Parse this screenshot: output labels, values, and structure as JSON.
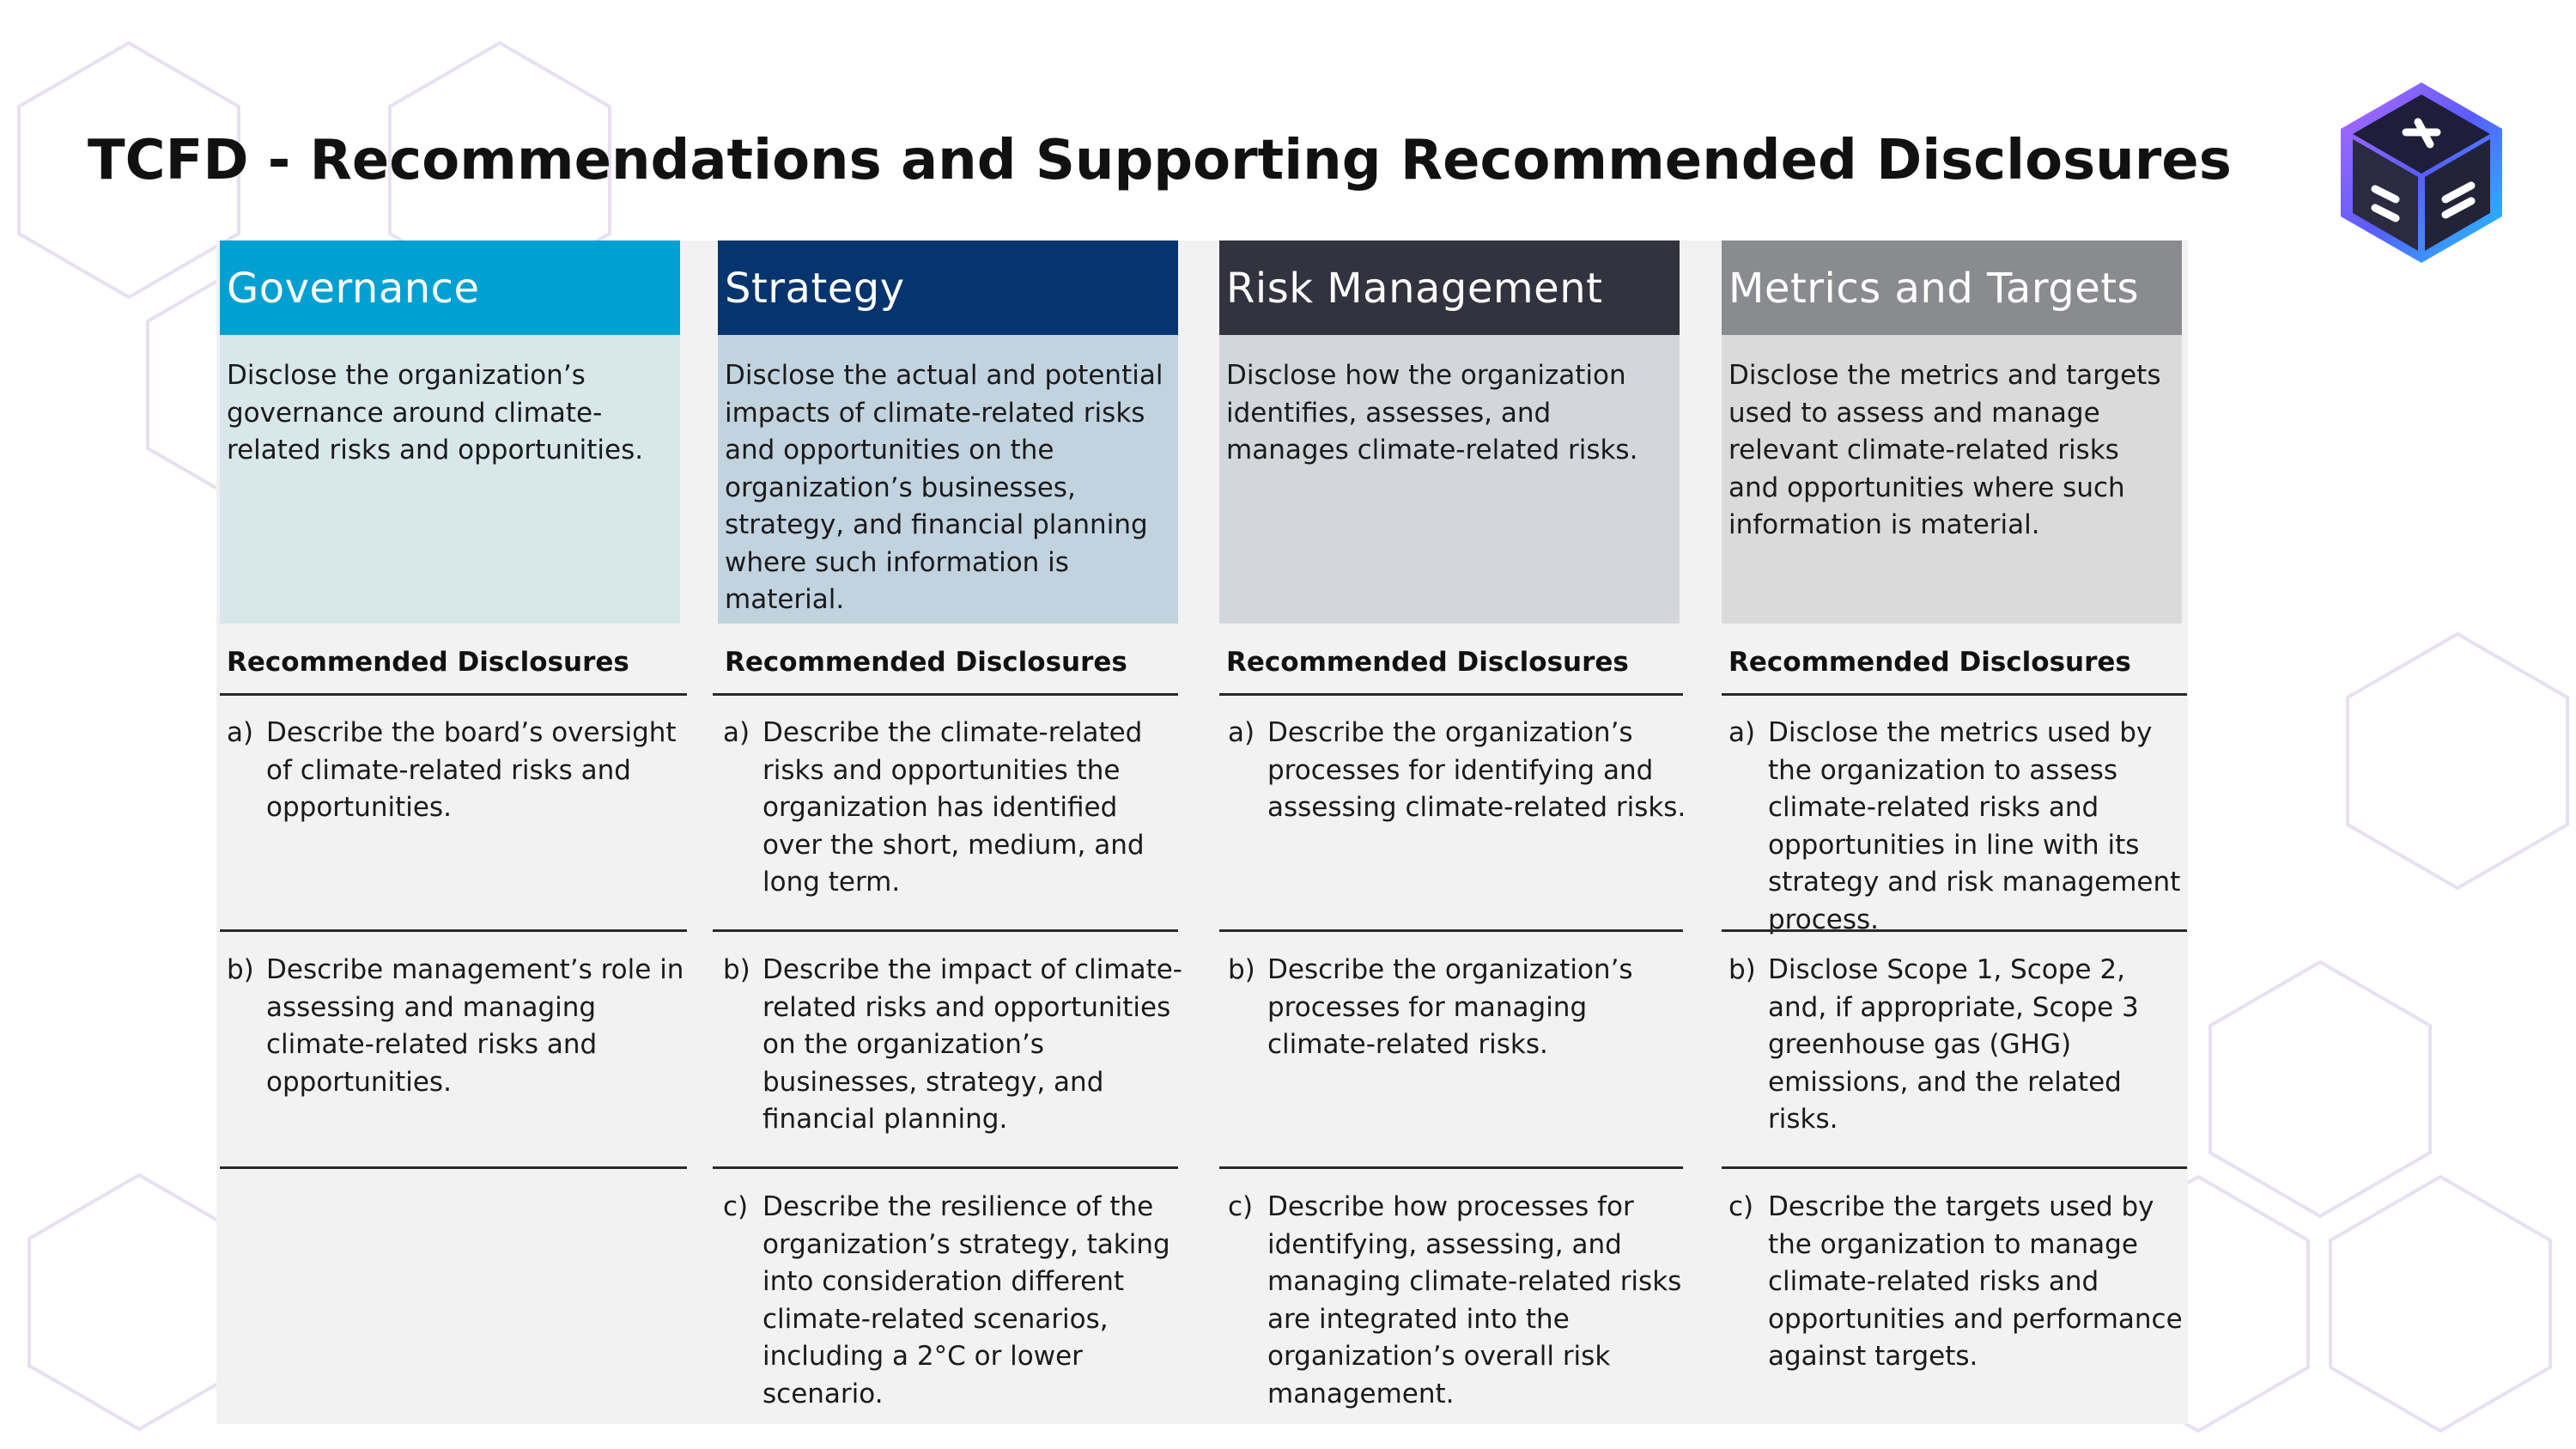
{
  "title": "TCFD - Recommendations and Supporting Recommended Disclosures",
  "logo": {
    "icon": "hexagon-cube-logo-icon"
  },
  "colors": {
    "governance_header": "#00a0d2",
    "governance_desc": "#d8e7ea",
    "strategy_header": "#06346e",
    "strategy_desc": "#c2d3e0",
    "risk_header": "#32333e",
    "risk_desc": "#d3d6db",
    "metrics_header": "#8a8b8e",
    "metrics_desc": "#dadada",
    "panel": "#f2f2f2",
    "hexagon_outline": "#e7e0f2"
  },
  "columns": [
    {
      "header": "Governance",
      "description": "Disclose the organization’s governance around climate-related risks and opportunities.",
      "rec_label": "Recommended Disclosures",
      "items": [
        {
          "letter": "a)",
          "text": "Describe the board’s oversight of climate-related risks and opportunities."
        },
        {
          "letter": "b)",
          "text": "Describe management’s role in assessing and managing climate-related risks and opportunities."
        }
      ]
    },
    {
      "header": "Strategy",
      "description": "Disclose the actual and potential impacts of climate-related risks and opportunities on the organization’s businesses, strategy, and financial planning where such information is material.",
      "rec_label": "Recommended Disclosures",
      "items": [
        {
          "letter": "a)",
          "text": "Describe the climate-related risks and opportunities the organization has identified over the short, medium, and long term."
        },
        {
          "letter": "b)",
          "text": "Describe the impact of climate-related risks and opportunities on the organization’s businesses, strategy, and financial planning."
        },
        {
          "letter": "c)",
          "text": "Describe the resilience of the organization’s strategy, taking into consideration different climate-related scenarios, including a 2°C or lower scenario."
        }
      ]
    },
    {
      "header": "Risk Management",
      "description": "Disclose how the organization identifies, assesses, and manages climate-related risks.",
      "rec_label": "Recommended Disclosures",
      "items": [
        {
          "letter": "a)",
          "text": "Describe the organization’s processes for identifying and assessing climate-related risks."
        },
        {
          "letter": "b)",
          "text": "Describe the organization’s processes for managing climate-related risks."
        },
        {
          "letter": "c)",
          "text": "Describe how processes for identifying, assessing, and managing climate-related risks are integrated into the organization’s overall risk management."
        }
      ]
    },
    {
      "header": "Metrics and Targets",
      "description": "Disclose the metrics and targets used to assess and manage relevant climate-related risks and opportunities where such information is material.",
      "rec_label": "Recommended Disclosures",
      "items": [
        {
          "letter": "a)",
          "text": "Disclose the metrics used by the organization to assess climate-related risks and opportunities in line with its strategy and risk management process."
        },
        {
          "letter": "b)",
          "text": "Disclose Scope 1, Scope 2, and, if appropriate, Scope 3 greenhouse gas (GHG) emissions, and the related risks."
        },
        {
          "letter": "c)",
          "text": "Describe the targets used by the organization to manage climate-related risks and opportunities and performance against targets."
        }
      ]
    }
  ]
}
